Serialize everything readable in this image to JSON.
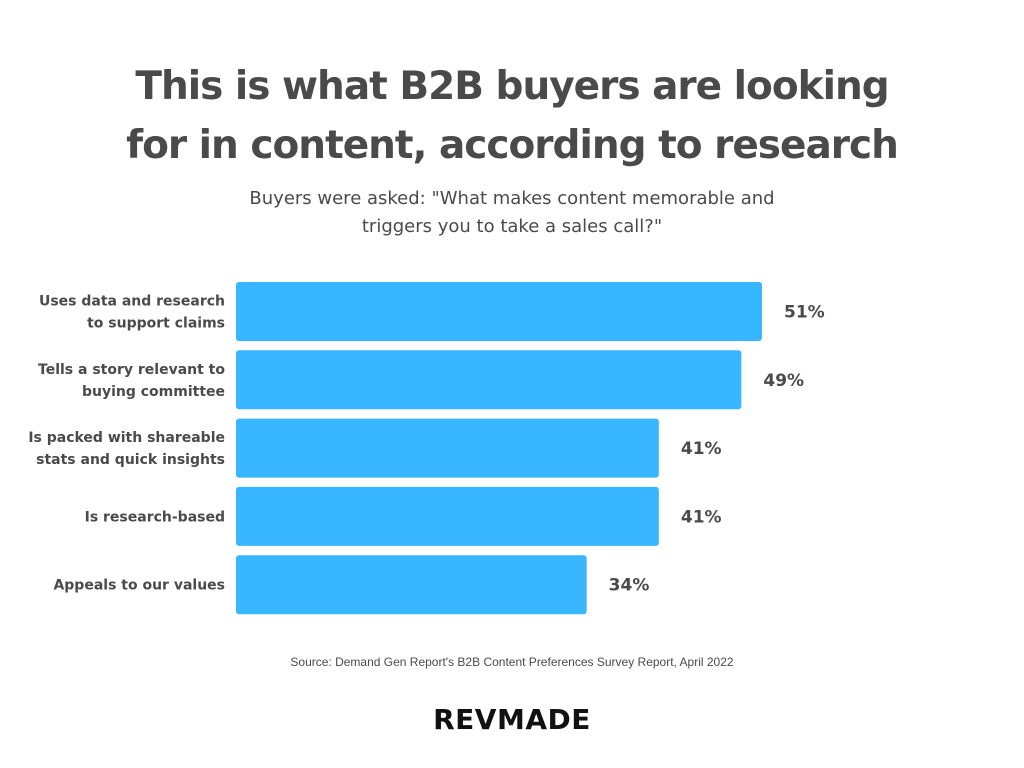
{
  "title": {
    "line1": "This is what B2B buyers are looking",
    "line2": "for in content, according to research"
  },
  "subtitle": {
    "line1": "Buyers were asked: \"What makes content memorable and",
    "line2": "triggers you to take a sales call?\""
  },
  "chart_data": {
    "type": "bar",
    "orientation": "horizontal",
    "categories": [
      [
        "Uses data and research",
        "to support claims"
      ],
      [
        "Tells a story relevant to",
        "buying committee"
      ],
      [
        "Is packed with shareable",
        "stats and  quick insights"
      ],
      [
        "Is research-based"
      ],
      [
        "Appeals to our values"
      ]
    ],
    "values": [
      51,
      49,
      41,
      41,
      34
    ],
    "value_labels": [
      "51%",
      "49%",
      "41%",
      "41%",
      "34%"
    ],
    "unit": "%",
    "xlim": [
      0,
      51
    ],
    "grid": false,
    "bar_color": "#38b6ff",
    "text_color": "#4a4a4a"
  },
  "source": "Source: Demand Gen Report's B2B Content Preferences Survey Report, April 2022",
  "logo": "REVMADE"
}
